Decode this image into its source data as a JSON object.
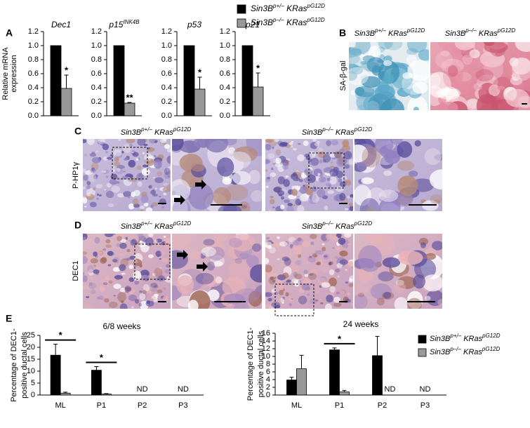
{
  "panel_letters": [
    "A",
    "B",
    "C",
    "D",
    "E"
  ],
  "panel_b": {
    "row_label": "SA-β-gal",
    "column_labels": [
      [
        "Sin3B",
        "p+/–",
        " KRas",
        "pG12D"
      ],
      [
        "Sin3B",
        "p–/–",
        " KRas",
        "pG12D"
      ]
    ]
  },
  "panel_c": {
    "row_label": "P-HP1γ",
    "column_labels": [
      [
        "Sin3B",
        "p+/–",
        " KRas",
        "pG12D"
      ],
      [
        "Sin3B",
        "p–/–",
        " KRas",
        "pG12D"
      ]
    ]
  },
  "panel_d": {
    "row_label": "DEC1",
    "column_labels": [
      [
        "Sin3B",
        "p+/–",
        " KRas",
        "pG12D"
      ],
      [
        "Sin3B",
        "p–/–",
        " KRas",
        "pG12D"
      ]
    ]
  },
  "chart_data": [
    {
      "type": "bar",
      "title": [
        "Dec1"
      ],
      "ylabel": [
        "Relative mRNA",
        "expression"
      ],
      "categories": [
        null
      ],
      "legend": "top",
      "series": [
        {
          "name": [
            "Sin3B",
            "p+/–",
            " KRas",
            "pG12D"
          ],
          "color": "#000000",
          "values": [
            1.0
          ]
        },
        {
          "name": [
            "Sin3B",
            "p–/–",
            " KRas",
            "pG12D"
          ],
          "color": "#999999",
          "values": [
            0.39
          ],
          "errors": [
            0.19
          ]
        }
      ],
      "ylim": [
        0,
        1.2
      ],
      "yticks": [
        {
          "value": 0,
          "label": "0.0"
        },
        {
          "value": 0.2,
          "label": "0.2"
        },
        {
          "value": 0.4,
          "label": "0.4"
        },
        {
          "value": 0.6,
          "label": "0.6"
        },
        {
          "value": 0.8,
          "label": "0.8"
        },
        {
          "value": 1,
          "label": "1.0"
        },
        {
          "value": 1.2,
          "label": "1.2"
        }
      ],
      "annotations": [
        {
          "text": "*",
          "series": 1,
          "category": 0
        }
      ]
    },
    {
      "type": "bar",
      "title": [
        "p15",
        "INK4B"
      ],
      "categories": [
        null
      ],
      "series": [
        {
          "color": "#000000",
          "values": [
            1.0
          ]
        },
        {
          "color": "#999999",
          "values": [
            0.18
          ],
          "errors": [
            0.01
          ]
        }
      ],
      "ylim": [
        0,
        1.2
      ],
      "yticks": [
        {
          "value": 0,
          "label": "0.0"
        },
        {
          "value": 0.2,
          "label": "0.2"
        },
        {
          "value": 0.4,
          "label": "0.4"
        },
        {
          "value": 0.6,
          "label": "0.6"
        },
        {
          "value": 0.8,
          "label": "0.8"
        },
        {
          "value": 1,
          "label": "1.0"
        },
        {
          "value": 1.2,
          "label": "1.2"
        }
      ],
      "annotations": [
        {
          "text": "**",
          "series": 1,
          "category": 0
        }
      ]
    },
    {
      "type": "bar",
      "title": [
        "p53"
      ],
      "categories": [
        null
      ],
      "series": [
        {
          "color": "#000000",
          "values": [
            1.0
          ]
        },
        {
          "color": "#999999",
          "values": [
            0.38
          ],
          "errors": [
            0.17
          ]
        }
      ],
      "ylim": [
        0,
        1.2
      ],
      "yticks": [
        {
          "value": 0,
          "label": "0.0"
        },
        {
          "value": 0.2,
          "label": "0.2"
        },
        {
          "value": 0.4,
          "label": "0.4"
        },
        {
          "value": 0.6,
          "label": "0.6"
        },
        {
          "value": 0.8,
          "label": "0.8"
        },
        {
          "value": 1,
          "label": "1.0"
        },
        {
          "value": 1.2,
          "label": "1.2"
        }
      ],
      "annotations": [
        {
          "text": "*",
          "series": 1,
          "category": 0
        }
      ]
    },
    {
      "type": "bar",
      "title": [
        "p21"
      ],
      "categories": [
        null
      ],
      "series": [
        {
          "color": "#000000",
          "values": [
            1.0
          ]
        },
        {
          "color": "#999999",
          "values": [
            0.41
          ],
          "errors": [
            0.2
          ]
        }
      ],
      "ylim": [
        0,
        1.2
      ],
      "yticks": [
        {
          "value": 0,
          "label": "0.0"
        },
        {
          "value": 0.2,
          "label": "0.2"
        },
        {
          "value": 0.4,
          "label": "0.4"
        },
        {
          "value": 0.6,
          "label": "0.6"
        },
        {
          "value": 0.8,
          "label": "0.8"
        },
        {
          "value": 1,
          "label": "1.0"
        },
        {
          "value": 1.2,
          "label": "1.2"
        }
      ],
      "annotations": [
        {
          "text": "*",
          "series": 1,
          "category": 0
        }
      ]
    },
    {
      "type": "bar",
      "title": [
        "6/8 weeks"
      ],
      "ylabel": [
        "Percentage of DEC1-",
        "positive ductal cells"
      ],
      "categories": [
        "ML",
        "P1",
        "P2",
        "P3"
      ],
      "series": [
        {
          "color": "#000000",
          "values": [
            16.7,
            10.4,
            null,
            null
          ],
          "errors": [
            4.6,
            1.5,
            null,
            null
          ],
          "value_labels": [
            null,
            null,
            "ND",
            "ND"
          ]
        },
        {
          "color": "#999999",
          "values": [
            0.8,
            0.4,
            null,
            null
          ],
          "errors": [
            0.4,
            0.2,
            null,
            null
          ]
        }
      ],
      "ylim": [
        0,
        25
      ],
      "yticks": [
        0,
        5,
        10,
        15,
        20,
        25
      ],
      "annotations": [
        {
          "text": "*",
          "category": 0
        },
        {
          "text": "*",
          "category": 1
        }
      ]
    },
    {
      "type": "bar",
      "title": [
        "24 weeks"
      ],
      "ylabel": [
        "Percentage of DEC1-",
        "positive ductal cells"
      ],
      "categories": [
        "ML",
        "P1",
        "P2",
        "P3"
      ],
      "legend": "right",
      "series": [
        {
          "name": [
            "Sin3B",
            "p+/–",
            " KRas",
            "pG12D"
          ],
          "color": "#000000",
          "values": [
            3.9,
            11.7,
            10.2,
            null
          ],
          "errors": [
            0.7,
            0.5,
            5.0,
            null
          ],
          "value_labels": [
            null,
            null,
            null,
            "ND"
          ]
        },
        {
          "name": [
            "Sin3B",
            "p–/–",
            " KRas",
            "pG12D"
          ],
          "color": "#999999",
          "values": [
            6.8,
            0.8,
            null,
            null
          ],
          "errors": [
            3.5,
            0.4,
            null,
            null
          ],
          "value_labels": [
            null,
            null,
            "ND",
            null
          ]
        }
      ],
      "ylim": [
        0,
        16
      ],
      "yticks": [
        0,
        2,
        4,
        6,
        8,
        10,
        12,
        14,
        16
      ],
      "annotations": [
        {
          "text": "*",
          "category": 1
        }
      ]
    }
  ]
}
